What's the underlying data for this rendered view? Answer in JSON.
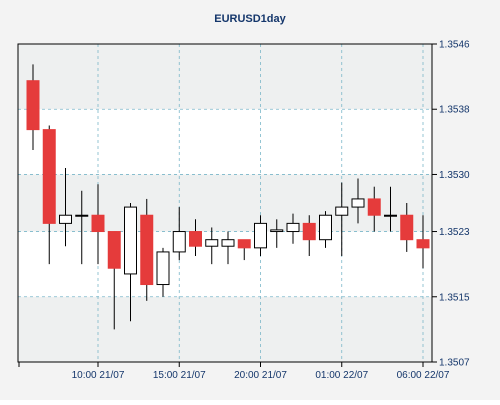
{
  "chart_data": {
    "type": "candlestick",
    "title": "EURUSD1day",
    "xlabel": "",
    "ylabel": "",
    "ylim": [
      1.3507,
      1.3546
    ],
    "grid": true,
    "y_ticks": [
      "1.3546",
      "1.3538",
      "1.3530",
      "1.3523",
      "1.3515",
      "1.3507"
    ],
    "x_ticks": [
      {
        "label": "10:00 21/07",
        "index": 4
      },
      {
        "label": "15:00 21/07",
        "index": 9
      },
      {
        "label": "20:00 21/07",
        "index": 14
      },
      {
        "label": "01:00 22/07",
        "index": 19
      },
      {
        "label": "06:00 22/07",
        "index": 24
      }
    ],
    "candles": [
      {
        "open": 1.35415,
        "high": 1.35435,
        "low": 1.3533,
        "close": 1.35355
      },
      {
        "open": 1.35355,
        "high": 1.3536,
        "low": 1.3519,
        "close": 1.3524
      },
      {
        "open": 1.3524,
        "high": 1.35308,
        "low": 1.35212,
        "close": 1.3525
      },
      {
        "open": 1.3525,
        "high": 1.3528,
        "low": 1.3519,
        "close": 1.3525
      },
      {
        "open": 1.3525,
        "high": 1.35288,
        "low": 1.3519,
        "close": 1.3523
      },
      {
        "open": 1.3523,
        "high": 1.3523,
        "low": 1.3511,
        "close": 1.35185
      },
      {
        "open": 1.35178,
        "high": 1.35265,
        "low": 1.3512,
        "close": 1.3526
      },
      {
        "open": 1.3525,
        "high": 1.3527,
        "low": 1.35145,
        "close": 1.35165
      },
      {
        "open": 1.35165,
        "high": 1.3521,
        "low": 1.3515,
        "close": 1.35205
      },
      {
        "open": 1.35205,
        "high": 1.3526,
        "low": 1.35195,
        "close": 1.3523
      },
      {
        "open": 1.3523,
        "high": 1.35245,
        "low": 1.352,
        "close": 1.35212
      },
      {
        "open": 1.35212,
        "high": 1.35235,
        "low": 1.3519,
        "close": 1.3522
      },
      {
        "open": 1.35212,
        "high": 1.3523,
        "low": 1.3519,
        "close": 1.3522
      },
      {
        "open": 1.3522,
        "high": 1.3522,
        "low": 1.35195,
        "close": 1.3521
      },
      {
        "open": 1.3521,
        "high": 1.3525,
        "low": 1.352,
        "close": 1.3524
      },
      {
        "open": 1.3523,
        "high": 1.35245,
        "low": 1.3521,
        "close": 1.35232
      },
      {
        "open": 1.3523,
        "high": 1.35252,
        "low": 1.35215,
        "close": 1.3524
      },
      {
        "open": 1.3524,
        "high": 1.3525,
        "low": 1.352,
        "close": 1.3522
      },
      {
        "open": 1.3522,
        "high": 1.35255,
        "low": 1.3521,
        "close": 1.3525
      },
      {
        "open": 1.3525,
        "high": 1.3529,
        "low": 1.352,
        "close": 1.3526
      },
      {
        "open": 1.3526,
        "high": 1.35295,
        "low": 1.3524,
        "close": 1.3527
      },
      {
        "open": 1.3527,
        "high": 1.35285,
        "low": 1.3523,
        "close": 1.3525
      },
      {
        "open": 1.3525,
        "high": 1.35285,
        "low": 1.3523,
        "close": 1.3525
      },
      {
        "open": 1.3525,
        "high": 1.35265,
        "low": 1.35205,
        "close": 1.3522
      },
      {
        "open": 1.3522,
        "high": 1.3525,
        "low": 1.35185,
        "close": 1.3521
      }
    ],
    "colors": {
      "bull_body": "#ffffff",
      "bear_body": "#e53b3b",
      "outline": "#000000",
      "grid": "#7bb7c9",
      "page_bg": "#f3f3f3",
      "plot_bg": "#ffffff",
      "band_bg": "#eef0f0",
      "text": "#14366b"
    }
  }
}
